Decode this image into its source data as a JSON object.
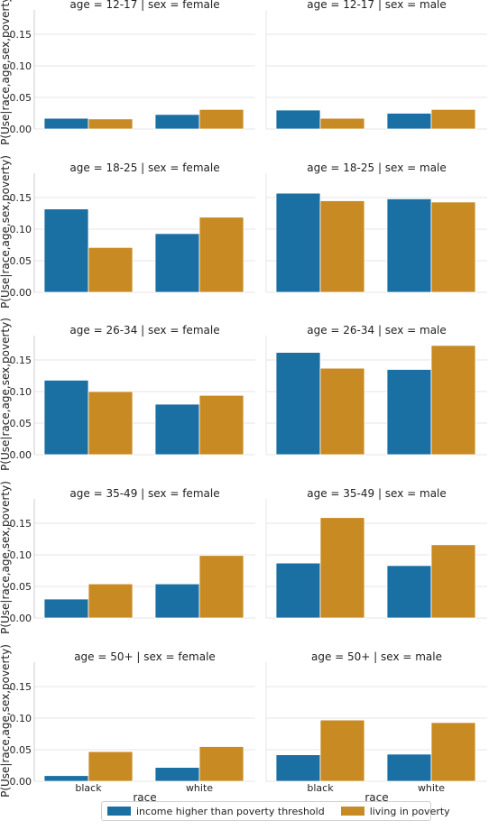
{
  "chart_data": {
    "type": "bar",
    "facet_rows": [
      "12-17",
      "18-25",
      "26-34",
      "35-49",
      "50+"
    ],
    "facet_cols": [
      "female",
      "male"
    ],
    "ylabel": "P(Use|race,age,sex,poverty)",
    "xlabel": "race",
    "categories": [
      "black",
      "white"
    ],
    "hue": [
      "income higher than poverty threshold",
      "living in poverty"
    ],
    "colors": [
      "#1a6fa3",
      "#c88a22"
    ],
    "ylim": [
      0,
      0.18
    ],
    "yticks": [
      "0.00",
      "0.05",
      "0.10",
      "0.15"
    ],
    "panels": [
      {
        "title": "age = 12-17 | sex = female",
        "values": [
          [
            0.017,
            0.016
          ],
          [
            0.023,
            0.031
          ]
        ]
      },
      {
        "title": "age = 12-17 | sex = male",
        "values": [
          [
            0.03,
            0.017
          ],
          [
            0.025,
            0.031
          ]
        ]
      },
      {
        "title": "age = 18-25 | sex = female",
        "values": [
          [
            0.132,
            0.071
          ],
          [
            0.093,
            0.119
          ]
        ]
      },
      {
        "title": "age = 18-25 | sex = male",
        "values": [
          [
            0.157,
            0.145
          ],
          [
            0.148,
            0.143
          ]
        ]
      },
      {
        "title": "age = 26-34 | sex = female",
        "values": [
          [
            0.118,
            0.1
          ],
          [
            0.08,
            0.094
          ]
        ]
      },
      {
        "title": "age = 26-34 | sex = male",
        "values": [
          [
            0.162,
            0.137
          ],
          [
            0.135,
            0.173
          ]
        ]
      },
      {
        "title": "age = 35-49 | sex = female",
        "values": [
          [
            0.03,
            0.054
          ],
          [
            0.054,
            0.099
          ]
        ]
      },
      {
        "title": "age = 35-49 | sex = male",
        "values": [
          [
            0.087,
            0.159
          ],
          [
            0.083,
            0.116
          ]
        ]
      },
      {
        "title": "age = 50+ | sex = female",
        "values": [
          [
            0.009,
            0.047
          ],
          [
            0.022,
            0.055
          ]
        ]
      },
      {
        "title": "age = 50+ | sex = male",
        "values": [
          [
            0.042,
            0.097
          ],
          [
            0.043,
            0.093
          ]
        ]
      }
    ]
  }
}
